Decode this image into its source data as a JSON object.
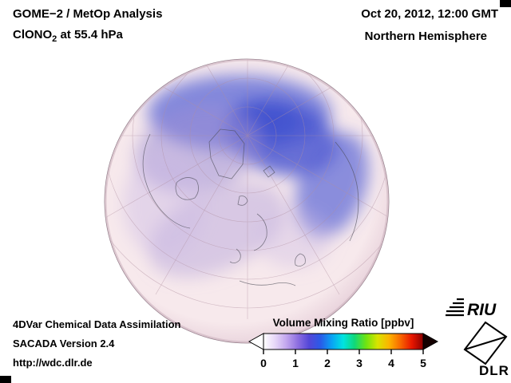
{
  "header": {
    "title": "GOME−2 / MetOp Analysis",
    "formula_prefix": "ClONO",
    "formula_sub": "2",
    "formula_suffix": " at 55.4 hPa",
    "datetime": "Oct 20, 2012, 12:00 GMT",
    "region": "Northern Hemisphere"
  },
  "footer": {
    "line1": "4DVar Chemical Data Assimilation",
    "line2": "SACADA Version 2.4",
    "line3": "http://wdc.dlr.de"
  },
  "colorbar": {
    "label": "Volume Mixing Ratio [ppbv]",
    "ticks": [
      "0",
      "1",
      "2",
      "3",
      "4",
      "5"
    ],
    "range": [
      0,
      5
    ],
    "unit": "ppbv",
    "gradient": [
      "#ffffff",
      "#e8d8f8",
      "#c2a6ee",
      "#8e6fe0",
      "#5347d8",
      "#2a5ae8",
      "#09a4f4",
      "#00e4e0",
      "#10d878",
      "#70e410",
      "#d8e400",
      "#fcb400",
      "#f86800",
      "#e81600",
      "#8c0000"
    ]
  },
  "map": {
    "projection": "Northern Hemisphere orthographic",
    "colors": {
      "sphere_center": "#f7e9ec",
      "sphere_edge": "#e4ccd7",
      "deep_blue": "#4353cf",
      "mid_blue": "#5b67d6",
      "light_purple": "#9c8fd6",
      "pale_purple": "#b9a7dc",
      "lavender": "#cdbbe4",
      "graticule": "#b08fa0",
      "coastline": "#4a4a55"
    }
  },
  "logos": {
    "riu": "RIU",
    "dlr": "DLR"
  }
}
